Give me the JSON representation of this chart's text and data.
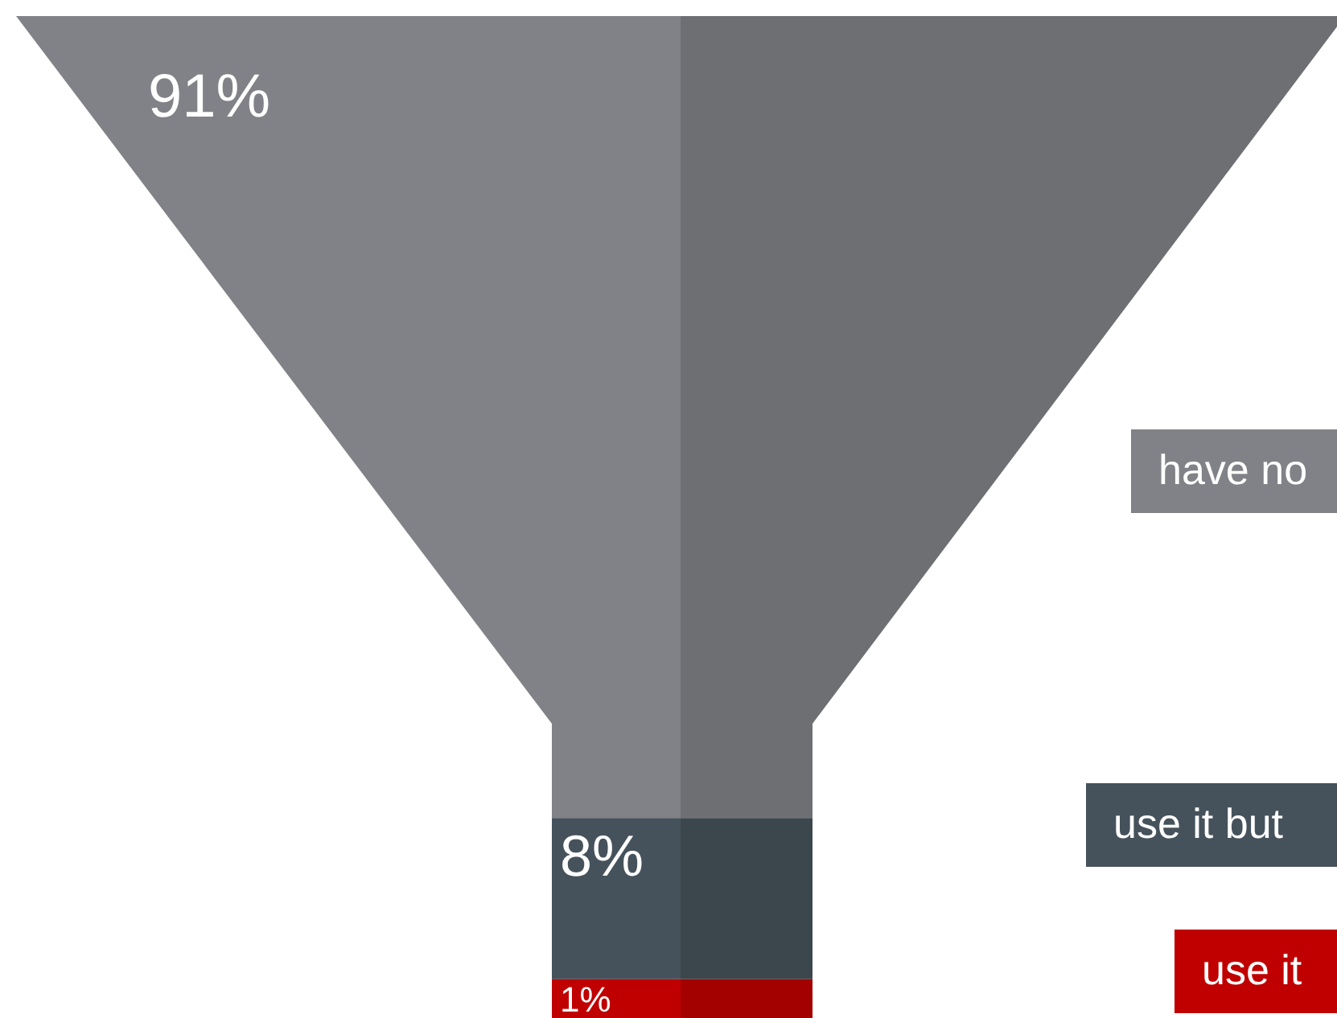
{
  "chart_data": {
    "type": "other",
    "categories": [
      "have no",
      "use it but",
      "use it"
    ],
    "values": [
      91,
      8,
      1
    ],
    "value_labels": [
      "91%",
      "8%",
      "1%"
    ],
    "colors": [
      "#818287",
      "#46525b",
      "#c00000"
    ]
  }
}
